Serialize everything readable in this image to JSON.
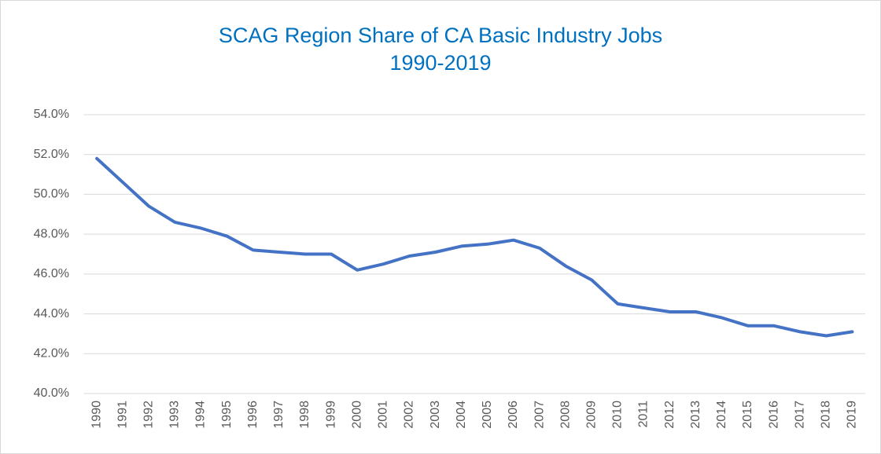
{
  "chart_data": {
    "type": "line",
    "title": [
      "SCAG Region Share of CA Basic Industry Jobs",
      "1990-2019"
    ],
    "categories": [
      "1990",
      "1991",
      "1992",
      "1993",
      "1994",
      "1995",
      "1996",
      "1997",
      "1998",
      "1999",
      "2000",
      "2001",
      "2002",
      "2003",
      "2004",
      "2005",
      "2006",
      "2007",
      "2008",
      "2009",
      "2010",
      "2011",
      "2012",
      "2013",
      "2014",
      "2015",
      "2016",
      "2017",
      "2018",
      "2019"
    ],
    "series": [
      {
        "color": "#4472c4",
        "values": [
          51.8,
          50.6,
          49.4,
          48.6,
          48.3,
          47.9,
          47.2,
          47.1,
          47.0,
          47.0,
          46.2,
          46.5,
          46.9,
          47.1,
          47.4,
          47.5,
          47.7,
          47.3,
          46.4,
          45.7,
          44.5,
          44.3,
          44.1,
          44.1,
          43.8,
          43.4,
          43.4,
          43.1,
          42.9,
          43.1
        ]
      }
    ],
    "ylim": [
      40,
      54
    ],
    "yticks": [
      {
        "value": 40,
        "label": "40.0%"
      },
      {
        "value": 42,
        "label": "42.0%"
      },
      {
        "value": 44,
        "label": "44.0%"
      },
      {
        "value": 46,
        "label": "46.0%"
      },
      {
        "value": 48,
        "label": "48.0%"
      },
      {
        "value": 50,
        "label": "50.0%"
      },
      {
        "value": 52,
        "label": "52.0%"
      },
      {
        "value": 54,
        "label": "54.0%"
      }
    ],
    "grid": true
  }
}
